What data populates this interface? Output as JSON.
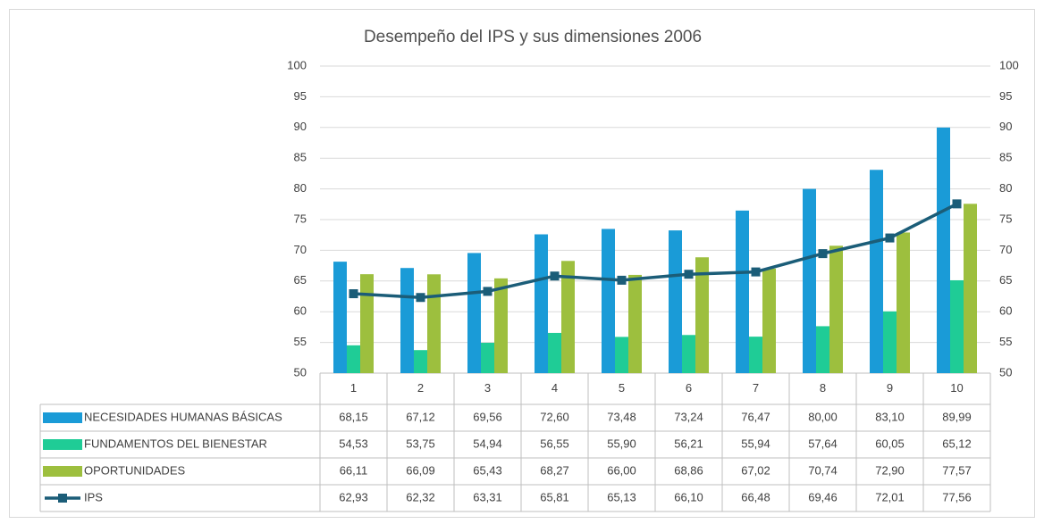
{
  "chart_data": {
    "type": "bar",
    "title": "Desempeño del IPS y sus dimensiones 2006",
    "categories": [
      "1",
      "2",
      "3",
      "4",
      "5",
      "6",
      "7",
      "8",
      "9",
      "10"
    ],
    "series": [
      {
        "name": "NECESIDADES HUMANAS BÁSICAS",
        "color": "#1a9bd7",
        "type": "bar",
        "values": [
          68.15,
          67.12,
          69.56,
          72.6,
          73.48,
          73.24,
          76.47,
          80.0,
          83.1,
          89.99
        ],
        "value_labels": [
          "68,15",
          "67,12",
          "69,56",
          "72,60",
          "73,48",
          "73,24",
          "76,47",
          "80,00",
          "83,10",
          "89,99"
        ]
      },
      {
        "name": "FUNDAMENTOS DEL BIENESTAR",
        "color": "#1fcc96",
        "type": "bar",
        "values": [
          54.53,
          53.75,
          54.94,
          56.55,
          55.9,
          56.21,
          55.94,
          57.64,
          60.05,
          65.12
        ],
        "value_labels": [
          "54,53",
          "53,75",
          "54,94",
          "56,55",
          "55,90",
          "56,21",
          "55,94",
          "57,64",
          "60,05",
          "65,12"
        ]
      },
      {
        "name": "OPORTUNIDADES",
        "color": "#9dbf3e",
        "type": "bar",
        "values": [
          66.11,
          66.09,
          65.43,
          68.27,
          66.0,
          68.86,
          67.02,
          70.74,
          72.9,
          77.57
        ],
        "value_labels": [
          "66,11",
          "66,09",
          "65,43",
          "68,27",
          "66,00",
          "68,86",
          "67,02",
          "70,74",
          "72,90",
          "77,57"
        ]
      },
      {
        "name": "IPS",
        "color": "#1b5d78",
        "type": "line",
        "values": [
          62.93,
          62.32,
          63.31,
          65.81,
          65.13,
          66.1,
          66.48,
          69.46,
          72.01,
          77.56
        ],
        "value_labels": [
          "62,93",
          "62,32",
          "63,31",
          "65,81",
          "65,13",
          "66,10",
          "66,48",
          "69,46",
          "72,01",
          "77,56"
        ]
      }
    ],
    "ylim": [
      50,
      100
    ],
    "yticks": [
      50,
      55,
      60,
      65,
      70,
      75,
      80,
      85,
      90,
      95,
      100
    ],
    "y2lim": [
      50,
      100
    ],
    "y2ticks": [
      50,
      55,
      60,
      65,
      70,
      75,
      80,
      85,
      90,
      95,
      100
    ],
    "grid": true
  }
}
